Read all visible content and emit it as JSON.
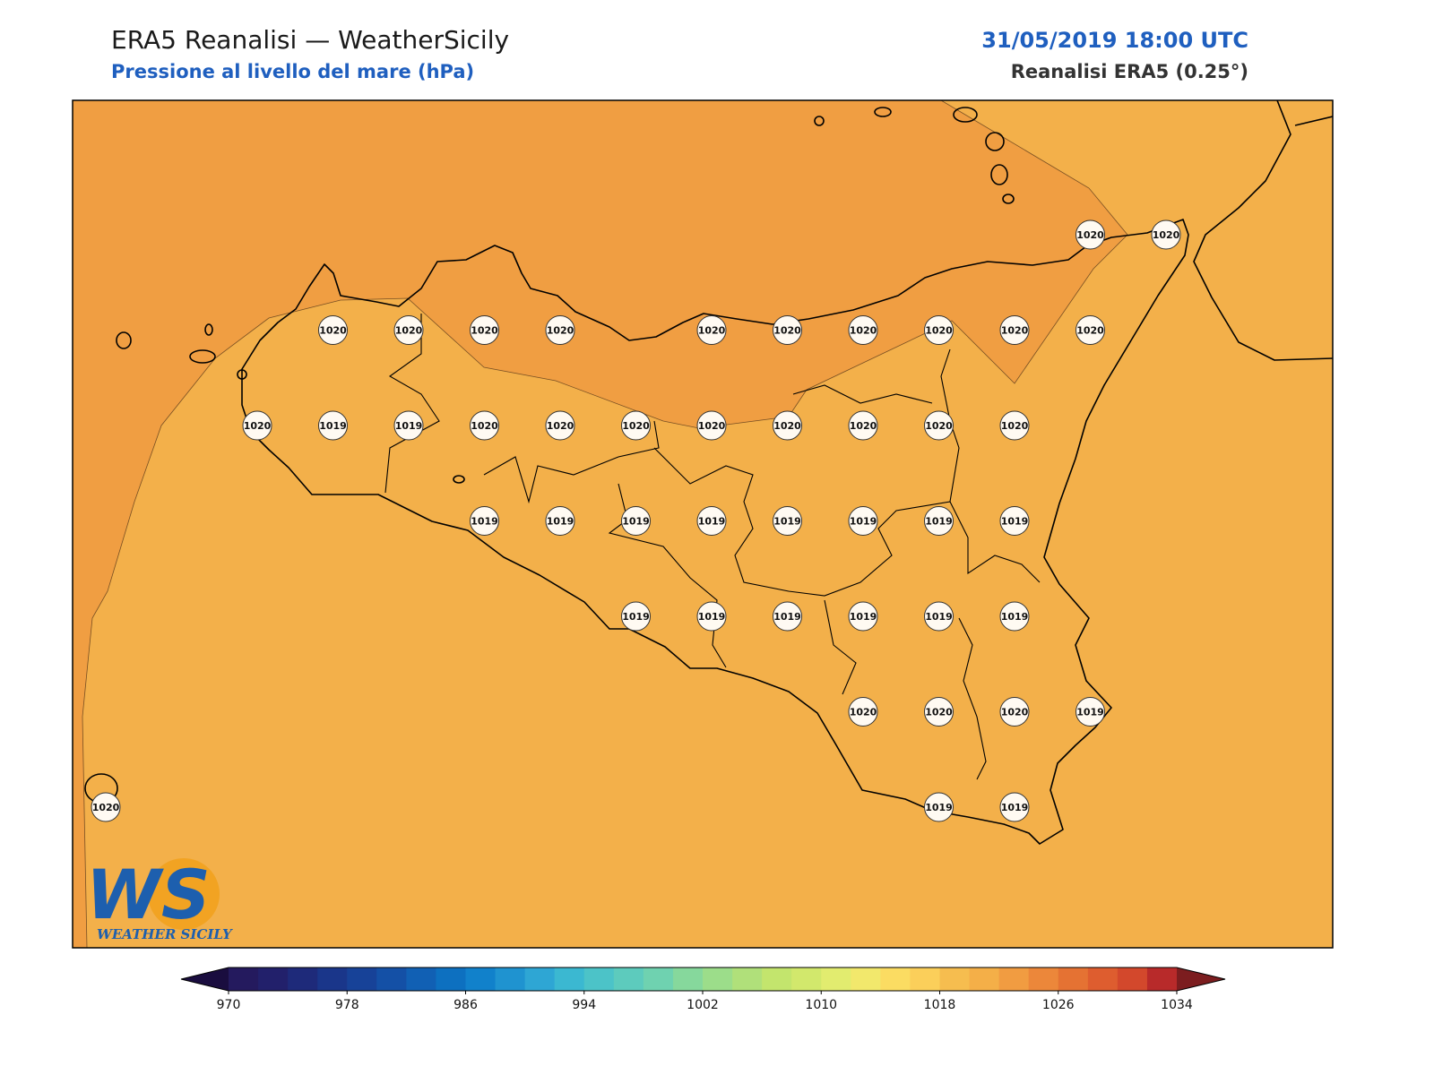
{
  "header": {
    "title": "ERA5 Reanalisi — WeatherSicily",
    "subtitle": "Pressione al livello del mare (hPa)",
    "datetime": "31/05/2019 18:00 UTC",
    "source": "Reanalisi ERA5 (0.25°)"
  },
  "stations": [
    1020,
    1020,
    1020,
    1020,
    1020,
    1020,
    1020,
    1020,
    1020,
    1020,
    1020,
    1020,
    1020,
    1019,
    1019,
    1020,
    1020,
    1020,
    1020,
    1020,
    1020,
    1020,
    1020,
    1019,
    1019,
    1019,
    1019,
    1019,
    1019,
    1019,
    1019,
    1019,
    1019,
    1019,
    1019,
    1019,
    1019,
    1020,
    1020,
    1020,
    1019,
    1020,
    1019,
    1019
  ],
  "colorbar": {
    "lim": [
      970,
      1034
    ],
    "ticks": [
      970,
      978,
      986,
      994,
      1002,
      1010,
      1018,
      1026,
      1034
    ],
    "colors": [
      "#241a5e",
      "#22206b",
      "#1e2a7a",
      "#1a368a",
      "#174298",
      "#1450a6",
      "#1160b4",
      "#0d70c0",
      "#1181cb",
      "#1f93d0",
      "#2ea6d4",
      "#3bb8d1",
      "#4cc3c8",
      "#5dcbbd",
      "#6fd2b0",
      "#86d89c",
      "#9cdd8a",
      "#b0e07a",
      "#c3e56d",
      "#d2e86c",
      "#e2ec6f",
      "#f2e86c",
      "#fbdc62",
      "#fbcf5a",
      "#f6bd4f",
      "#f4af48",
      "#f19c41",
      "#ec873a",
      "#e57233",
      "#de5d2f",
      "#d3482c",
      "#b82a2a"
    ],
    "under_color": "#1a0d3f",
    "over_color": "#7c1d1f"
  },
  "logo": {
    "mark": "WS",
    "name": "WEATHER SICILY"
  }
}
